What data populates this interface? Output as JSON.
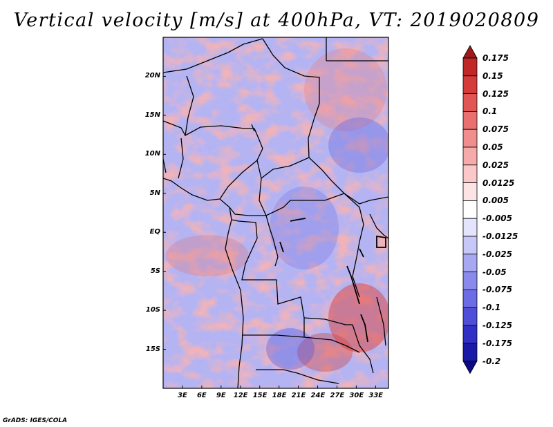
{
  "title": "Vertical velocity [m/s] at 400hPa, VT: 2019020809",
  "credit": "GrADS: IGES/COLA",
  "map": {
    "lat_labels": [
      "20N",
      "15N",
      "10N",
      "5N",
      "EQ",
      "5S",
      "10S",
      "15S"
    ],
    "lat_values": [
      20,
      15,
      10,
      5,
      0,
      -5,
      -10,
      -15
    ],
    "lat_range": [
      -20,
      25
    ],
    "lon_labels": [
      "3E",
      "6E",
      "9E",
      "12E",
      "15E",
      "18E",
      "21E",
      "24E",
      "27E",
      "30E",
      "33E"
    ],
    "lon_values": [
      3,
      6,
      9,
      12,
      15,
      18,
      21,
      24,
      27,
      30,
      33
    ],
    "lon_range": [
      0,
      35
    ]
  },
  "colorbar": {
    "labels": [
      "0.175",
      "0.15",
      "0.125",
      "0.1",
      "0.075",
      "0.05",
      "0.025",
      "0.0125",
      "0.005",
      "-0.005",
      "-0.0125",
      "-0.025",
      "-0.05",
      "-0.075",
      "-0.1",
      "-0.125",
      "-0.175",
      "-0.2"
    ],
    "colors": [
      "#a01818",
      "#c22727",
      "#d63b3b",
      "#e25555",
      "#ea7070",
      "#f08d8d",
      "#f6abab",
      "#fac8c8",
      "#fde4e4",
      "#ffffff",
      "#e4e4fc",
      "#c8c8f8",
      "#a8a8f2",
      "#8a8aec",
      "#6c6ce4",
      "#4e4ed8",
      "#3030c6",
      "#1a1aa8",
      "#0a0a88"
    ]
  }
}
